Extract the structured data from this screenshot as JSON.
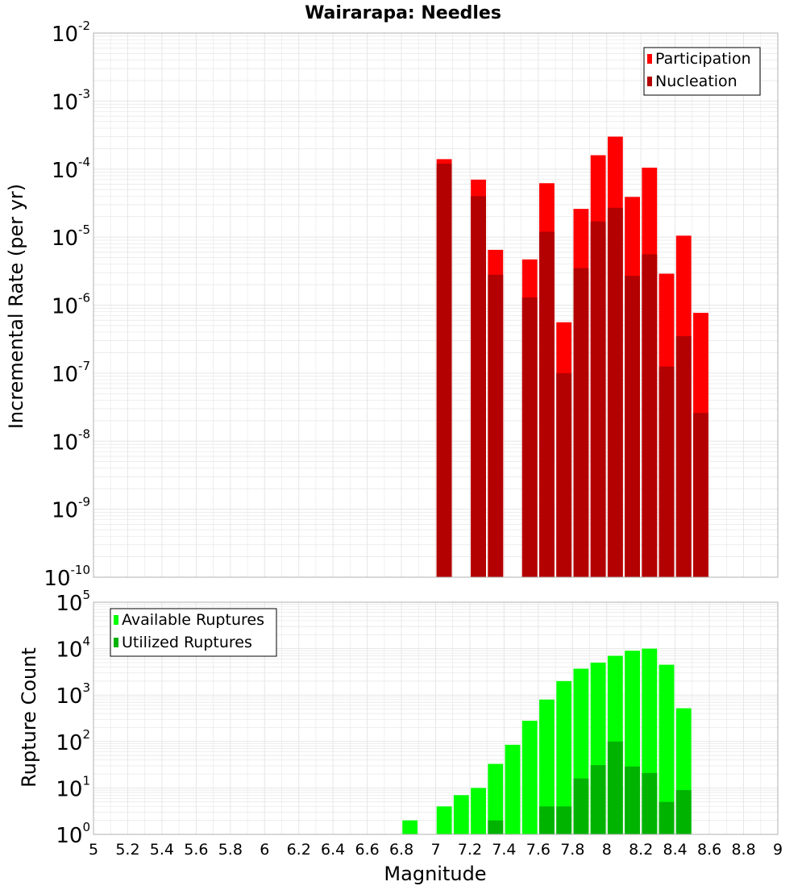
{
  "title": "Wairarapa: Needles",
  "xlabel": "Magnitude",
  "chart_data": [
    {
      "type": "bar",
      "ylabel": "Incremental Rate (per yr)",
      "yscale": "log",
      "ylim_exponents": [
        -10,
        -2
      ],
      "xlim": [
        5,
        9
      ],
      "grid": true,
      "legend_position": "top-right",
      "x": [
        7.05,
        7.25,
        7.35,
        7.55,
        7.65,
        7.75,
        7.85,
        7.95,
        8.05,
        8.15,
        8.25,
        8.35,
        8.45,
        8.55
      ],
      "series": [
        {
          "name": "Participation",
          "color": "#ff0000",
          "values": [
            0.00014,
            7e-05,
            6.5e-06,
            4.7e-06,
            6.2e-05,
            5.6e-07,
            2.6e-05,
            0.00016,
            0.0003,
            3.9e-05,
            0.000105,
            2.9e-06,
            1.05e-05,
            7.7e-07
          ]
        },
        {
          "name": "Nucleation",
          "color": "#b30000",
          "values": [
            0.00012,
            4e-05,
            2.8e-06,
            1.3e-06,
            1.2e-05,
            1e-07,
            3.5e-06,
            1.7e-05,
            2.7e-05,
            2.7e-06,
            5.6e-06,
            1.25e-07,
            3.5e-07,
            2.6e-08
          ]
        }
      ]
    },
    {
      "type": "bar",
      "ylabel": "Rupture Count",
      "yscale": "log",
      "ylim_exponents": [
        0,
        5
      ],
      "xlim": [
        5,
        9
      ],
      "grid": true,
      "legend_position": "top-left",
      "x": [
        6.85,
        6.95,
        7.05,
        7.15,
        7.25,
        7.35,
        7.45,
        7.55,
        7.65,
        7.75,
        7.85,
        7.95,
        8.05,
        8.15,
        8.25,
        8.35,
        8.45,
        8.55
      ],
      "series": [
        {
          "name": "Available Ruptures",
          "color": "#00ff00",
          "values": [
            2,
            1,
            4,
            7,
            10,
            33,
            85,
            280,
            800,
            2000,
            3700,
            5000,
            7000,
            9000,
            10000,
            4500,
            520,
            1
          ]
        },
        {
          "name": "Utilized Ruptures",
          "color": "#00b300",
          "values": [
            0,
            0,
            1,
            0,
            1,
            2,
            0,
            1,
            4,
            4,
            16,
            31,
            100,
            29,
            21,
            5,
            9,
            1
          ]
        }
      ]
    }
  ],
  "x_ticks": [
    "5",
    "5.2",
    "5.4",
    "5.6",
    "5.8",
    "6",
    "6.2",
    "6.4",
    "6.6",
    "6.8",
    "7",
    "7.2",
    "7.4",
    "7.6",
    "7.8",
    "8",
    "8.2",
    "8.4",
    "8.6",
    "8.8",
    "9"
  ],
  "x_tick_values": [
    5,
    5.2,
    5.4,
    5.6,
    5.8,
    6,
    6.2,
    6.4,
    6.6,
    6.8,
    7,
    7.2,
    7.4,
    7.6,
    7.8,
    8,
    8.2,
    8.4,
    8.6,
    8.8,
    9
  ],
  "top_y_ticks": [
    {
      "base": "10",
      "exp": "-10"
    },
    {
      "base": "10",
      "exp": "-9"
    },
    {
      "base": "10",
      "exp": "-8"
    },
    {
      "base": "10",
      "exp": "-7"
    },
    {
      "base": "10",
      "exp": "-6"
    },
    {
      "base": "10",
      "exp": "-5"
    },
    {
      "base": "10",
      "exp": "-4"
    },
    {
      "base": "10",
      "exp": "-3"
    },
    {
      "base": "10",
      "exp": "-2"
    }
  ],
  "bottom_y_ticks": [
    {
      "base": "10",
      "exp": "0"
    },
    {
      "base": "10",
      "exp": "1"
    },
    {
      "base": "10",
      "exp": "2"
    },
    {
      "base": "10",
      "exp": "3"
    },
    {
      "base": "10",
      "exp": "4"
    },
    {
      "base": "10",
      "exp": "5"
    }
  ],
  "colors": {
    "grid": "#e6e6e6",
    "frame": "#b0b0b0"
  }
}
